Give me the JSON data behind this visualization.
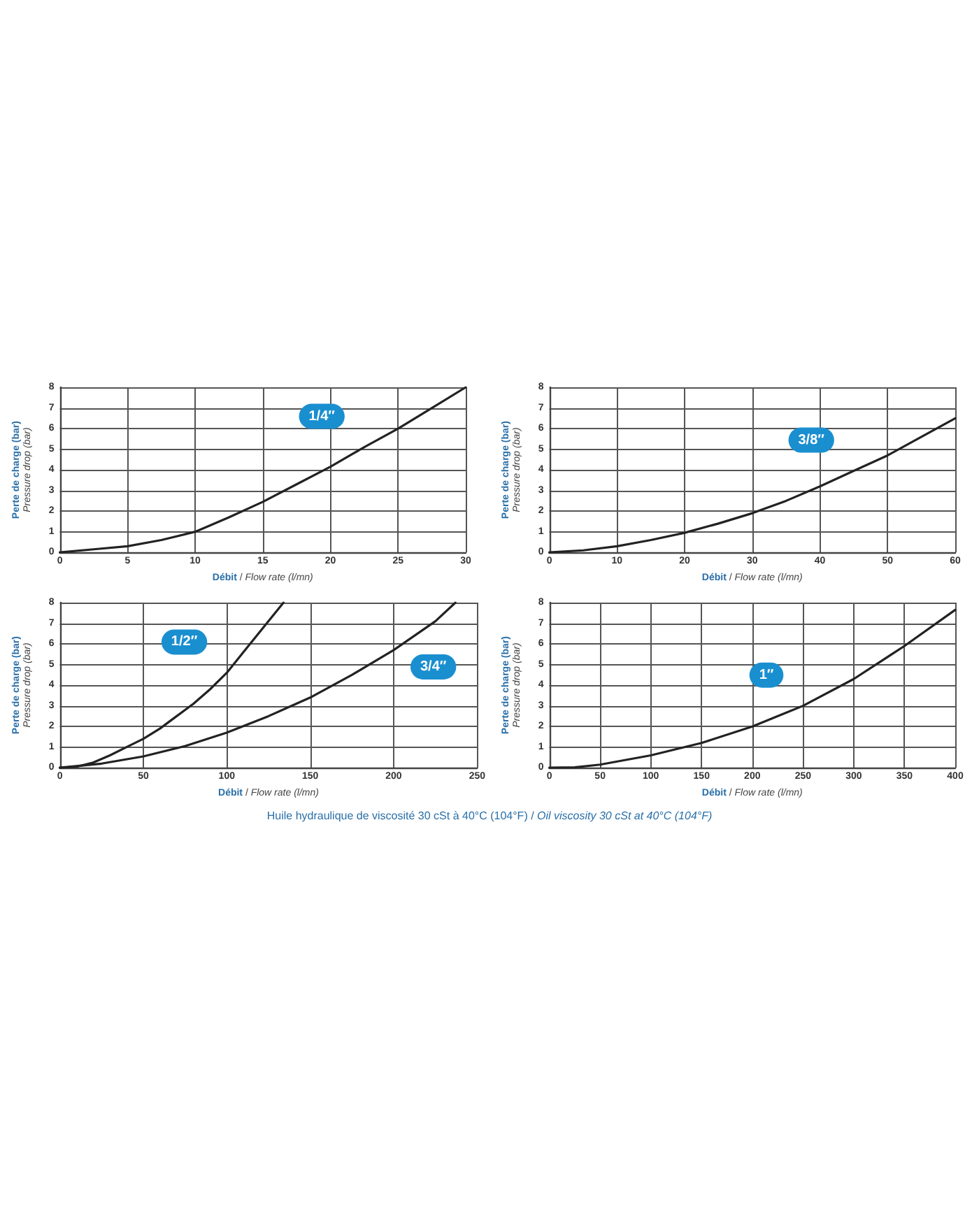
{
  "chart_data": [
    {
      "type": "line",
      "xlabel": "Débit / Flow rate (l/mn)",
      "ylabel": "Perte de charge (bar)\nPressure drop (bar)",
      "xlim": [
        0,
        30
      ],
      "xticks": [
        0,
        5,
        10,
        15,
        20,
        25,
        30
      ],
      "ylim": [
        0,
        8
      ],
      "yticks": [
        0,
        1,
        2,
        3,
        4,
        5,
        6,
        7,
        8
      ],
      "grid": true,
      "marker": "none",
      "line_style": "solid",
      "series": [
        {
          "name": "1/4″",
          "color": "#222222",
          "x": [
            0,
            2.5,
            5,
            7.5,
            10,
            12.5,
            15,
            17.5,
            20,
            22.5,
            25,
            27.5,
            30
          ],
          "values": [
            0,
            0.15,
            0.3,
            0.6,
            1.0,
            1.7,
            2.45,
            3.3,
            4.15,
            5.1,
            6.0,
            7.0,
            8.0
          ]
        }
      ]
    },
    {
      "type": "line",
      "xlabel": "Débit / Flow rate (l/mn)",
      "ylabel": "Perte de charge (bar)\nPressure drop (bar)",
      "xlim": [
        0,
        60
      ],
      "xticks": [
        0,
        10,
        20,
        30,
        40,
        50,
        60
      ],
      "ylim": [
        0,
        8
      ],
      "yticks": [
        0,
        1,
        2,
        3,
        4,
        5,
        6,
        7,
        8
      ],
      "grid": true,
      "marker": "none",
      "line_style": "solid",
      "series": [
        {
          "name": "3/8″",
          "color": "#222222",
          "x": [
            0,
            5,
            10,
            15,
            20,
            25,
            30,
            35,
            40,
            45,
            50,
            55,
            60
          ],
          "values": [
            0,
            0.1,
            0.3,
            0.6,
            0.95,
            1.4,
            1.9,
            2.5,
            3.2,
            3.95,
            4.7,
            5.6,
            6.5
          ]
        }
      ]
    },
    {
      "type": "line",
      "xlabel": "Débit / Flow rate (l/mn)",
      "ylabel": "Perte de charge (bar)\nPressure drop (bar)",
      "xlim": [
        0,
        250
      ],
      "xticks": [
        0,
        50,
        100,
        150,
        200,
        250
      ],
      "ylim": [
        0,
        8
      ],
      "yticks": [
        0,
        1,
        2,
        3,
        4,
        5,
        6,
        7,
        8
      ],
      "grid": true,
      "marker": "none",
      "line_style": "solid",
      "series": [
        {
          "name": "1/2″",
          "color": "#222222",
          "x": [
            0,
            10,
            20,
            30,
            40,
            50,
            60,
            70,
            80,
            90,
            100,
            110,
            120,
            130,
            134
          ],
          "values": [
            0,
            0.05,
            0.25,
            0.6,
            1.0,
            1.4,
            1.9,
            2.5,
            3.1,
            3.8,
            4.6,
            5.6,
            6.6,
            7.6,
            8.0
          ]
        },
        {
          "name": "3/4″",
          "color": "#222222",
          "x": [
            0,
            25,
            50,
            75,
            100,
            125,
            150,
            175,
            200,
            225,
            237
          ],
          "values": [
            0,
            0.2,
            0.55,
            1.05,
            1.7,
            2.5,
            3.4,
            4.5,
            5.7,
            7.1,
            8.0
          ]
        }
      ]
    },
    {
      "type": "line",
      "xlabel": "Débit / Flow rate (l/mn)",
      "ylabel": "Perte de charge (bar)\nPressure drop (bar)",
      "xlim": [
        0,
        400
      ],
      "xticks": [
        0,
        50,
        100,
        150,
        200,
        250,
        300,
        350,
        400
      ],
      "ylim": [
        0,
        8
      ],
      "yticks": [
        0,
        1,
        2,
        3,
        4,
        5,
        6,
        7,
        8
      ],
      "grid": true,
      "marker": "none",
      "line_style": "solid",
      "annotations": [
        "Huile hydraulique de viscosité 30 cSt à 40°C (104°F) / Oil viscosity 30 cSt at 40°C (104°F)"
      ],
      "series": [
        {
          "name": "1″",
          "color": "#222222",
          "x": [
            0,
            25,
            50,
            100,
            150,
            200,
            250,
            300,
            350,
            400
          ],
          "values": [
            0,
            0.02,
            0.15,
            0.6,
            1.2,
            2.0,
            3.0,
            4.3,
            5.9,
            7.65
          ]
        }
      ]
    }
  ]
}
